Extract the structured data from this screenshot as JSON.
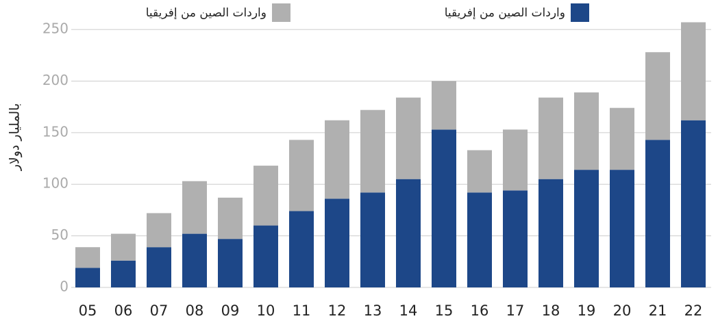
{
  "chart_data": {
    "type": "stacked_bar",
    "y_label": "بالمليار دولار",
    "categories": [
      "05",
      "06",
      "07",
      "08",
      "09",
      "10",
      "11",
      "12",
      "13",
      "14",
      "15",
      "16",
      "17",
      "18",
      "19",
      "20",
      "21",
      "22"
    ],
    "series": [
      {
        "name": "واردات الصين من إفريقيا",
        "color": "#1d4788",
        "values": [
          19,
          26,
          39,
          52,
          47,
          60,
          74,
          86,
          92,
          105,
          153,
          92,
          94,
          105,
          114,
          114,
          143,
          162
        ]
      },
      {
        "name": "واردات الصين من إفريقيا",
        "color": "#b0b0b0",
        "values": [
          20,
          26,
          33,
          51,
          40,
          58,
          69,
          76,
          80,
          79,
          47,
          41,
          59,
          79,
          75,
          60,
          85,
          95
        ]
      }
    ],
    "ylim": [
      0,
      260
    ],
    "yticks": [
      0,
      50,
      100,
      150,
      200,
      250
    ],
    "grid": true
  }
}
